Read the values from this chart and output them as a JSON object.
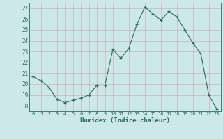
{
  "x": [
    0,
    1,
    2,
    3,
    4,
    5,
    6,
    7,
    8,
    9,
    10,
    11,
    12,
    13,
    14,
    15,
    16,
    17,
    18,
    19,
    20,
    21,
    22,
    23
  ],
  "y": [
    20.7,
    20.3,
    19.7,
    18.6,
    18.3,
    18.5,
    18.7,
    19.0,
    19.9,
    19.9,
    23.2,
    22.4,
    23.3,
    25.5,
    27.1,
    26.5,
    25.9,
    26.7,
    26.2,
    25.0,
    23.8,
    22.8,
    19.0,
    17.7
  ],
  "line_color": "#2d6b5e",
  "bg_color": "#cce8e8",
  "grid_color": "#c4b8b8",
  "xlabel": "Humidex (Indice chaleur)",
  "ylabel_ticks": [
    18,
    19,
    20,
    21,
    22,
    23,
    24,
    25,
    26,
    27
  ],
  "ylim": [
    17.5,
    27.5
  ],
  "xlim": [
    -0.5,
    23.5
  ],
  "tick_color": "#2d6b5e",
  "label_color": "#2d6b5e"
}
